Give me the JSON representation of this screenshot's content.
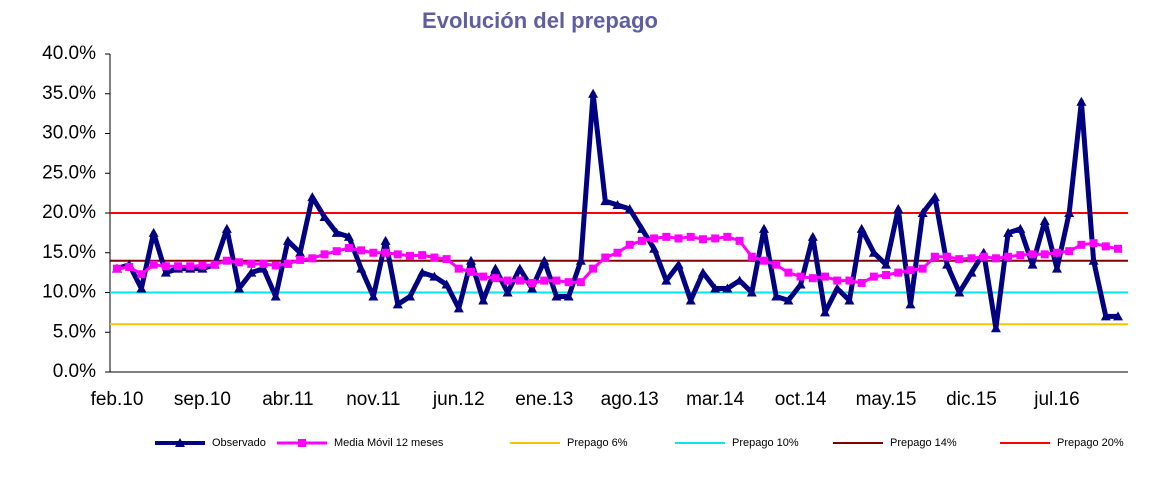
{
  "chart_data": {
    "type": "line",
    "title": "Evolución del prepago",
    "categories": [
      "feb.10",
      null,
      null,
      null,
      null,
      null,
      null,
      "sep.10",
      null,
      null,
      null,
      null,
      null,
      null,
      "abr.11",
      null,
      null,
      null,
      null,
      null,
      null,
      "nov.11",
      null,
      null,
      null,
      null,
      null,
      null,
      "jun.12",
      null,
      null,
      null,
      null,
      null,
      null,
      "ene.13",
      null,
      null,
      null,
      null,
      null,
      null,
      "ago.13",
      null,
      null,
      null,
      null,
      null,
      null,
      "mar.14",
      null,
      null,
      null,
      null,
      null,
      null,
      "oct.14",
      null,
      null,
      null,
      null,
      null,
      null,
      "may.15",
      null,
      null,
      null,
      null,
      null,
      null,
      "dic.15",
      null,
      null,
      null,
      null,
      null,
      null,
      "jul.16",
      null,
      null,
      null,
      null,
      null
    ],
    "series": [
      {
        "name": "Observado",
        "color": "#000080",
        "marker": "triangle",
        "values": [
          13,
          13.5,
          10.5,
          17.5,
          12.5,
          13,
          13,
          13,
          13.5,
          18,
          10.5,
          12.5,
          13,
          9.5,
          16.5,
          15,
          22,
          19.5,
          17.5,
          17,
          13,
          9.5,
          16.5,
          8.5,
          9.5,
          12.5,
          12,
          11,
          8,
          14,
          9,
          13,
          10,
          13,
          10.5,
          14,
          9.5,
          9.5,
          14,
          35,
          21.5,
          21,
          20.5,
          18,
          15.5,
          11.5,
          13.5,
          9,
          12.5,
          10.5,
          10.5,
          11.5,
          10,
          18,
          9.5,
          9,
          11,
          17,
          7.5,
          10.5,
          9,
          18,
          15,
          13.5,
          20.5,
          8.5,
          20,
          22,
          13.5,
          10,
          12.5,
          15,
          5.5,
          17.5,
          18,
          13.5,
          19,
          13,
          20,
          34,
          14,
          7,
          7
        ]
      },
      {
        "name": "Media Móvil 12 meses",
        "color": "#ff00ff",
        "marker": "square",
        "values": [
          13,
          13.2,
          12.3,
          13.5,
          13.3,
          13.3,
          13.3,
          13.4,
          13.5,
          14,
          13.8,
          13.6,
          13.6,
          13.4,
          13.6,
          14.1,
          14.3,
          14.8,
          15.2,
          15.6,
          15.3,
          15,
          15,
          14.8,
          14.6,
          14.7,
          14.4,
          14.2,
          13,
          12.6,
          12,
          11.8,
          11.5,
          11.5,
          11.2,
          11.5,
          11.5,
          11.3,
          11.3,
          13,
          14.4,
          15,
          16,
          16.5,
          16.8,
          17,
          16.8,
          17,
          16.7,
          16.8,
          17,
          16.5,
          14.5,
          14,
          13.5,
          12.5,
          12,
          11.8,
          12,
          11.5,
          11.5,
          11.2,
          12,
          12.2,
          12.5,
          12.8,
          13,
          14.5,
          14.5,
          14.2,
          14.3,
          14.5,
          14.3,
          14.5,
          14.7,
          14.8,
          14.8,
          15,
          15.2,
          16,
          16.2,
          15.8,
          15.5
        ]
      }
    ],
    "reference_lines": [
      {
        "name": "Prepago 6%",
        "color": "#f5c400",
        "value": 6
      },
      {
        "name": "Prepago 10%",
        "color": "#00e5ee",
        "value": 10
      },
      {
        "name": "Prepago 14%",
        "color": "#800000",
        "value": 14
      },
      {
        "name": "Prepago 20%",
        "color": "#ff0000",
        "value": 20
      }
    ],
    "ylim": [
      0,
      40
    ],
    "yticks": [
      {
        "value": 0,
        "label": "0.0%"
      },
      {
        "value": 5,
        "label": "5.0%"
      },
      {
        "value": 10,
        "label": "10.0%"
      },
      {
        "value": 15,
        "label": "15.0%"
      },
      {
        "value": 20,
        "label": "20.0%"
      },
      {
        "value": 25,
        "label": "25.0%"
      },
      {
        "value": 30,
        "label": "30.0%"
      },
      {
        "value": 35,
        "label": "35.0%"
      },
      {
        "value": 40,
        "label": "40.0%"
      }
    ],
    "legend": "bottom"
  }
}
